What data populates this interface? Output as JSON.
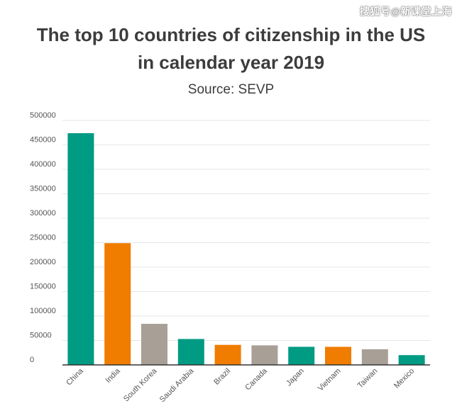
{
  "watermark": "搜狐号@新课堂上海",
  "chart_data": {
    "type": "bar",
    "title_line1": "The top 10 countries of citizenship in the US",
    "title_line2": "in calendar year 2019",
    "subtitle": "Source: SEVP",
    "xlabel": "",
    "ylabel": "",
    "ylim": [
      0,
      500000
    ],
    "yticks": [
      0,
      50000,
      100000,
      150000,
      200000,
      250000,
      300000,
      350000,
      400000,
      450000,
      500000
    ],
    "grid": true,
    "categories": [
      "China",
      "India",
      "South Korea",
      "Saudi Arabia",
      "Brazil",
      "Canada",
      "Japan",
      "Vietnam",
      "Taiwan",
      "Mexico"
    ],
    "values": [
      474000,
      249000,
      84000,
      53000,
      41000,
      40000,
      37000,
      37000,
      32000,
      20000
    ],
    "colors": [
      "#009b83",
      "#f07c00",
      "#a89f96",
      "#009b83",
      "#f07c00",
      "#a89f96",
      "#009b83",
      "#f07c00",
      "#a89f96",
      "#009b83"
    ]
  }
}
